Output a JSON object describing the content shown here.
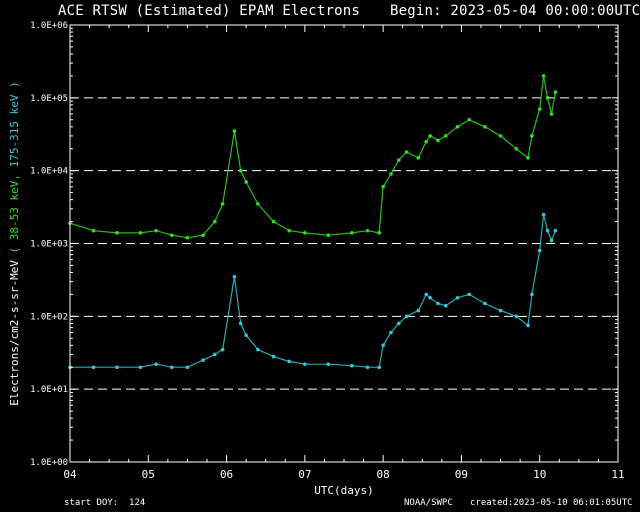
{
  "header": {
    "title": "ACE RTSW (Estimated) EPAM Electrons",
    "begin": "Begin: 2023-05-04 00:00:00UTC"
  },
  "footer": {
    "start_doy": "start DOY:  124",
    "source": "NOAA/SWPC",
    "created": "created:2023-05-10 06:01:05UTC"
  },
  "colors": {
    "background": "#000000",
    "axes": "#ffffff",
    "grid": "#ffffff",
    "series_38_53": "#33dd22",
    "series_175_315": "#33c8d6"
  },
  "chart_data": {
    "type": "scatter",
    "title": "ACE RTSW (Estimated) EPAM Electrons",
    "xlabel": "UTC(days)",
    "ylabel_prefix": "Electrons/cm2-s-sr-MeV",
    "ylabel_parts": [
      {
        "text": "( 38-53 keV,",
        "color": "#33dd22"
      },
      {
        "text": "175-315 keV )",
        "color": "#33c8d6"
      }
    ],
    "x_tick_labels": [
      "04",
      "05",
      "06",
      "07",
      "08",
      "09",
      "10",
      "11"
    ],
    "xlim": [
      4,
      11
    ],
    "y_scale": "log",
    "ylim": [
      1,
      1000000
    ],
    "y_tick_values": [
      1,
      10,
      100,
      1000,
      10000,
      100000,
      1000000
    ],
    "y_tick_labels": [
      "1.0E+00",
      "1.0E+01",
      "1.0E+02",
      "1.0E+03",
      "1.0E+04",
      "1.0E+05",
      "1.0E+06"
    ],
    "grid": "horizontal dashed at 1.0E+01 through 1.0E+05",
    "series": [
      {
        "name": "38-53 keV",
        "color": "#33dd22",
        "x": [
          4.0,
          4.3,
          4.6,
          4.9,
          5.1,
          5.3,
          5.5,
          5.7,
          5.85,
          5.95,
          6.1,
          6.18,
          6.25,
          6.4,
          6.6,
          6.8,
          7.0,
          7.3,
          7.6,
          7.8,
          7.95,
          8.0,
          8.1,
          8.2,
          8.3,
          8.45,
          8.55,
          8.6,
          8.7,
          8.8,
          8.95,
          9.1,
          9.3,
          9.5,
          9.7,
          9.85,
          9.9,
          10.0,
          10.05,
          10.1,
          10.15,
          10.2
        ],
        "y": [
          1900,
          1500,
          1400,
          1400,
          1500,
          1300,
          1200,
          1300,
          2000,
          3500,
          35000,
          10000,
          7000,
          3500,
          2000,
          1500,
          1400,
          1300,
          1400,
          1500,
          1400,
          6000,
          9000,
          14000,
          18000,
          15000,
          25000,
          30000,
          26000,
          30000,
          40000,
          50000,
          40000,
          30000,
          20000,
          15000,
          30000,
          70000,
          200000,
          100000,
          60000,
          120000
        ]
      },
      {
        "name": "175-315 keV",
        "color": "#33c8d6",
        "x": [
          4.0,
          4.3,
          4.6,
          4.9,
          5.1,
          5.3,
          5.5,
          5.7,
          5.85,
          5.95,
          6.1,
          6.18,
          6.25,
          6.4,
          6.6,
          6.8,
          7.0,
          7.3,
          7.6,
          7.8,
          7.95,
          8.0,
          8.1,
          8.2,
          8.3,
          8.45,
          8.55,
          8.6,
          8.7,
          8.8,
          8.95,
          9.1,
          9.3,
          9.5,
          9.7,
          9.85,
          9.9,
          10.0,
          10.05,
          10.1,
          10.15,
          10.2
        ],
        "y": [
          20,
          20,
          20,
          20,
          22,
          20,
          20,
          25,
          30,
          35,
          350,
          80,
          55,
          35,
          28,
          24,
          22,
          22,
          21,
          20,
          20,
          40,
          60,
          80,
          100,
          120,
          200,
          180,
          150,
          140,
          180,
          200,
          150,
          120,
          100,
          75,
          200,
          800,
          2500,
          1500,
          1100,
          1500
        ]
      }
    ]
  }
}
